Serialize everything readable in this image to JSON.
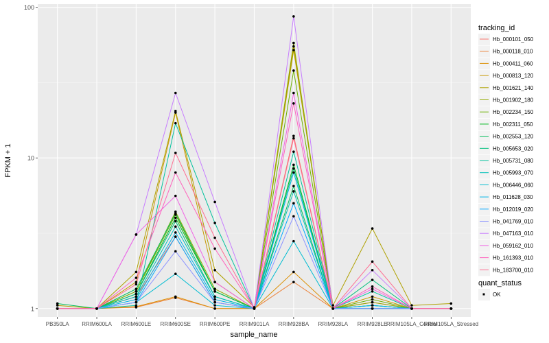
{
  "chart_data": {
    "type": "line",
    "xlabel": "sample_name",
    "ylabel": "FPKM + 1",
    "y_scale": "log10",
    "ylim": [
      0.88,
      105
    ],
    "y_ticks": [
      1,
      10,
      100
    ],
    "y_tick_labels": [
      "1",
      "10",
      "100"
    ],
    "categories": [
      "PB350LA",
      "RRIM600LA",
      "RRIM600LE",
      "RRIM600SE",
      "RRIM600PE",
      "RRIM901LA",
      "RRIM928BA",
      "RRIM928LA",
      "RRIM928LE",
      "RRIM105LA_Control",
      "RRIM105LA_Stressed"
    ],
    "legend_title": "tracking_id",
    "legend_position": "right",
    "legend2_title": "quant_status",
    "legend2_entries": [
      "OK"
    ],
    "grid": true,
    "background": "#EBEBEB",
    "series": [
      {
        "name": "Hb_000101_050",
        "color": "#F8766D",
        "values": [
          1.0,
          1.0,
          1.2,
          3.0,
          1.1,
          1.0,
          14.0,
          1.0,
          1.1,
          1.0,
          1.0
        ]
      },
      {
        "name": "Hb_000118_010",
        "color": "#EC8239",
        "values": [
          1.0,
          1.0,
          1.02,
          1.18,
          1.0,
          1.0,
          1.5,
          1.0,
          1.0,
          1.0,
          1.0
        ]
      },
      {
        "name": "Hb_000411_060",
        "color": "#DB8E00",
        "values": [
          1.0,
          1.0,
          1.03,
          1.2,
          1.0,
          1.0,
          1.75,
          1.0,
          1.0,
          1.0,
          1.0
        ]
      },
      {
        "name": "Hb_000813_120",
        "color": "#C79800",
        "values": [
          1.0,
          1.0,
          1.5,
          20.0,
          1.5,
          1.0,
          55.0,
          1.0,
          1.2,
          1.0,
          1.0
        ]
      },
      {
        "name": "Hb_001621_140",
        "color": "#AFA100",
        "values": [
          1.05,
          1.0,
          1.75,
          20.5,
          1.8,
          1.02,
          52.0,
          1.05,
          3.4,
          1.05,
          1.08
        ]
      },
      {
        "name": "Hb_001902_180",
        "color": "#93AA00",
        "values": [
          1.0,
          1.0,
          1.3,
          4.4,
          1.35,
          1.0,
          58.0,
          1.0,
          1.1,
          1.0,
          1.0
        ]
      },
      {
        "name": "Hb_002234_150",
        "color": "#6BB100",
        "values": [
          1.0,
          1.0,
          1.3,
          4.2,
          1.3,
          1.0,
          38.0,
          1.0,
          1.15,
          1.0,
          1.0
        ]
      },
      {
        "name": "Hb_002311_050",
        "color": "#00B81F",
        "values": [
          1.0,
          1.0,
          1.25,
          4.0,
          1.3,
          1.0,
          9.0,
          1.0,
          1.05,
          1.0,
          1.0
        ]
      },
      {
        "name": "Hb_002553_120",
        "color": "#00BC59",
        "values": [
          1.08,
          1.0,
          1.35,
          4.3,
          1.3,
          1.0,
          6.5,
          1.0,
          1.0,
          1.0,
          1.0
        ]
      },
      {
        "name": "Hb_005653_020",
        "color": "#00BF7D",
        "values": [
          1.0,
          1.0,
          1.25,
          3.8,
          1.2,
          1.0,
          8.5,
          1.0,
          1.55,
          1.0,
          1.0
        ]
      },
      {
        "name": "Hb_005731_080",
        "color": "#00C19C",
        "values": [
          1.0,
          1.0,
          1.05,
          17.0,
          3.7,
          1.0,
          11.0,
          1.0,
          1.3,
          1.0,
          1.0
        ]
      },
      {
        "name": "Hb_005993_070",
        "color": "#00C0B8",
        "values": [
          1.0,
          1.0,
          1.2,
          3.5,
          1.2,
          1.0,
          6.0,
          1.0,
          1.05,
          1.0,
          1.0
        ]
      },
      {
        "name": "Hb_006446_060",
        "color": "#00BCD1",
        "values": [
          1.0,
          1.0,
          1.1,
          1.7,
          1.05,
          1.0,
          2.8,
          1.0,
          1.0,
          1.0,
          1.0
        ]
      },
      {
        "name": "Hb_011628_030",
        "color": "#00B5E7",
        "values": [
          1.0,
          1.0,
          1.15,
          3.2,
          1.15,
          1.0,
          8.0,
          1.0,
          1.05,
          1.0,
          1.0
        ]
      },
      {
        "name": "Hb_012019_020",
        "color": "#00A9FF",
        "values": [
          1.0,
          1.0,
          1.1,
          3.0,
          1.1,
          1.0,
          5.0,
          1.0,
          1.0,
          1.0,
          1.0
        ]
      },
      {
        "name": "Hb_041769_010",
        "color": "#8B93FF",
        "values": [
          1.0,
          1.0,
          1.1,
          2.4,
          1.1,
          1.0,
          4.1,
          1.0,
          1.0,
          1.0,
          1.0
        ]
      },
      {
        "name": "Hb_047163_010",
        "color": "#C77CFF",
        "values": [
          1.0,
          1.0,
          3.1,
          27.0,
          5.1,
          1.0,
          87.0,
          1.0,
          1.8,
          1.0,
          1.0
        ]
      },
      {
        "name": "Hb_059162_010",
        "color": "#F064E4",
        "values": [
          1.0,
          1.0,
          3.1,
          5.6,
          1.5,
          1.0,
          27.0,
          1.0,
          1.35,
          1.0,
          1.0
        ]
      },
      {
        "name": "Hb_161393_010",
        "color": "#FF62BC",
        "values": [
          1.0,
          1.0,
          1.6,
          8.0,
          2.5,
          1.0,
          23.0,
          1.0,
          1.4,
          1.0,
          1.0
        ]
      },
      {
        "name": "Hb_183700_010",
        "color": "#FF6C91",
        "values": [
          1.0,
          1.0,
          1.45,
          10.8,
          2.95,
          1.0,
          13.5,
          1.0,
          2.05,
          1.0,
          1.0
        ]
      }
    ]
  }
}
